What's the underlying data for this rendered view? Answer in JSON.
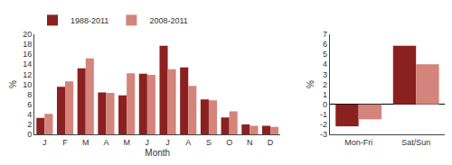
{
  "chart_data": [
    {
      "type": "bar",
      "categories": [
        "J",
        "F",
        "M",
        "A",
        "M",
        "J",
        "J",
        "A",
        "S",
        "O",
        "N",
        "D"
      ],
      "series": [
        {
          "name": "1988-2011",
          "color": "#8B2020",
          "values": [
            3.3,
            9.5,
            13.2,
            8.4,
            7.8,
            12.1,
            17.7,
            13.4,
            7.0,
            3.4,
            2.0,
            1.7
          ]
        },
        {
          "name": "2008-2011",
          "color": "#D4847A",
          "values": [
            4.1,
            10.6,
            15.2,
            8.3,
            12.2,
            11.9,
            13.0,
            9.7,
            6.8,
            4.6,
            1.7,
            1.5
          ]
        }
      ],
      "x_label": "Month",
      "y_label": "%",
      "ylim": [
        0,
        20
      ],
      "yticks": [
        0,
        2,
        4,
        6,
        8,
        10,
        12,
        14,
        16,
        18,
        20
      ],
      "legend": "upper left",
      "grid": false
    },
    {
      "type": "bar",
      "categories": [
        "Mon-Fri",
        "Sat/Sun"
      ],
      "series": [
        {
          "color": "#8B2020",
          "values": [
            -2.2,
            5.85
          ]
        },
        {
          "color": "#D4847A",
          "values": [
            -1.5,
            4.0
          ]
        }
      ],
      "y_label": "%",
      "ylim": [
        -3,
        7
      ],
      "yticks": [
        -3,
        -2,
        -1,
        0,
        1,
        2,
        3,
        4,
        5,
        6,
        7
      ],
      "grid": false
    }
  ]
}
